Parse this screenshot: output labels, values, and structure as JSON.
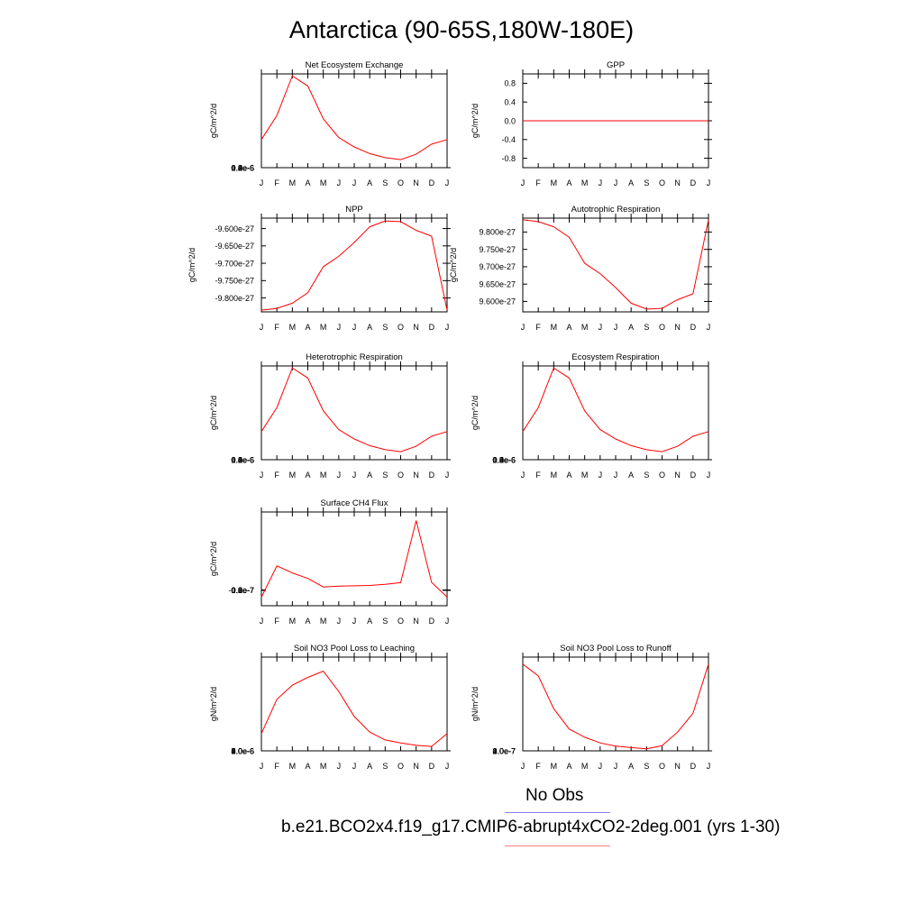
{
  "title": "Antarctica (90-65S,180W-180E)",
  "legend": {
    "obs_label": "No Obs",
    "obs_color": "#8080ff",
    "case_label": "b.e21.BCO2x4.f19_g17.CMIP6-abrupt4xCO2-2deg.001 (yrs 1-30)",
    "case_color": "#ff8080"
  },
  "chart_data": [
    {
      "type": "line",
      "title": "Net Ecosystem Exchange",
      "ylabel": "gC/m^2/d",
      "categories": [
        "J",
        "F",
        "M",
        "A",
        "M",
        "J",
        "J",
        "A",
        "S",
        "O",
        "N",
        "D",
        "J"
      ],
      "ylim": [
        0.0,
        1.4e-06
      ],
      "yticks": [
        "0.0e-6",
        "0.2e-6",
        "0.4e-6",
        "0.6e-6",
        "0.8e-6",
        "1.0e-6",
        "1.2e-6",
        "1.4e-6"
      ],
      "line_color": "#ff0000",
      "values": [
        4.2e-07,
        7.8e-07,
        1.37e-06,
        1.22e-06,
        7.3e-07,
        4.5e-07,
        3.1e-07,
        2.1e-07,
        1.5e-07,
        1.2e-07,
        2e-07,
        3.5e-07,
        4.2e-07
      ]
    },
    {
      "type": "line",
      "title": "GPP",
      "ylabel": "gC/m^2/d",
      "categories": [
        "J",
        "F",
        "M",
        "A",
        "M",
        "J",
        "J",
        "A",
        "S",
        "O",
        "N",
        "D",
        "J"
      ],
      "ylim": [
        -1.0,
        1.0
      ],
      "yticks": [
        "-0.8",
        "-0.4",
        "0.0",
        "0.4",
        "0.8"
      ],
      "line_color": "#ff0000",
      "values": [
        0,
        0,
        0,
        0,
        0,
        0,
        0,
        0,
        0,
        0,
        0,
        0,
        0
      ]
    },
    {
      "type": "line",
      "title": "NPP",
      "ylabel": "gC/m^2/d",
      "categories": [
        "J",
        "F",
        "M",
        "A",
        "M",
        "J",
        "J",
        "A",
        "S",
        "O",
        "N",
        "D",
        "J"
      ],
      "ylim": [
        -9.84e-27,
        -9.57e-27
      ],
      "yticks": [
        "-9.800e-27",
        "-9.750e-27",
        "-9.700e-27",
        "-9.650e-27",
        "-9.600e-27"
      ],
      "line_color": "#ff0000",
      "values": [
        -9.835e-27,
        -9.83e-27,
        -9.815e-27,
        -9.785e-27,
        -9.71e-27,
        -9.68e-27,
        -9.64e-27,
        -9.595e-27,
        -9.578e-27,
        -9.58e-27,
        -9.605e-27,
        -9.622e-27,
        -9.835e-27
      ]
    },
    {
      "type": "line",
      "title": "Autotrophic Respiration",
      "ylabel": "gC/m^2/d",
      "categories": [
        "J",
        "F",
        "M",
        "A",
        "M",
        "J",
        "J",
        "A",
        "S",
        "O",
        "N",
        "D",
        "J"
      ],
      "ylim": [
        9.57e-27,
        9.84e-27
      ],
      "yticks": [
        "9.600e-27",
        "9.650e-27",
        "9.700e-27",
        "9.750e-27",
        "9.800e-27"
      ],
      "line_color": "#ff0000",
      "values": [
        9.835e-27,
        9.83e-27,
        9.815e-27,
        9.785e-27,
        9.71e-27,
        9.68e-27,
        9.64e-27,
        9.595e-27,
        9.578e-27,
        9.58e-27,
        9.605e-27,
        9.622e-27,
        9.835e-27
      ]
    },
    {
      "type": "line",
      "title": "Heterotrophic Respiration",
      "ylabel": "gC/m^2/d",
      "categories": [
        "J",
        "F",
        "M",
        "A",
        "M",
        "J",
        "J",
        "A",
        "S",
        "O",
        "N",
        "D",
        "J"
      ],
      "ylim": [
        0.0,
        1.4e-06
      ],
      "yticks": [
        "0.0e-6",
        "0.2e-6",
        "0.4e-6",
        "0.6e-6",
        "0.8e-6",
        "1.0e-6",
        "1.2e-6",
        "1.4e-6"
      ],
      "line_color": "#ff0000",
      "values": [
        4.2e-07,
        7.8e-07,
        1.37e-06,
        1.22e-06,
        7.3e-07,
        4.5e-07,
        3.1e-07,
        2.1e-07,
        1.5e-07,
        1.2e-07,
        2e-07,
        3.5e-07,
        4.2e-07
      ]
    },
    {
      "type": "line",
      "title": "Ecosystem Respiration",
      "ylabel": "gC/m^2/d",
      "categories": [
        "J",
        "F",
        "M",
        "A",
        "M",
        "J",
        "J",
        "A",
        "S",
        "O",
        "N",
        "D",
        "J"
      ],
      "ylim": [
        0.0,
        1.4e-06
      ],
      "yticks": [
        "0.0e-6",
        "0.2e-6",
        "0.4e-6",
        "0.6e-6",
        "0.8e-6",
        "1.0e-6",
        "1.2e-6",
        "1.4e-6"
      ],
      "line_color": "#ff0000",
      "values": [
        4.2e-07,
        7.8e-07,
        1.37e-06,
        1.22e-06,
        7.3e-07,
        4.5e-07,
        3.1e-07,
        2.1e-07,
        1.5e-07,
        1.2e-07,
        2e-07,
        3.5e-07,
        4.2e-07
      ]
    },
    {
      "type": "line",
      "title": "Surface CH4 Flux",
      "ylabel": "gC/m^2/d",
      "categories": [
        "J",
        "F",
        "M",
        "A",
        "M",
        "J",
        "J",
        "A",
        "S",
        "O",
        "N",
        "D",
        "J"
      ],
      "ylim": [
        -2e-08,
        1e-07
      ],
      "yticks": [
        "-0.2e-7",
        "0.0e-7",
        "0.2e-7",
        "0.4e-7",
        "0.6e-7",
        "0.8e-7",
        "1.0e-7"
      ],
      "line_color": "#ff0000",
      "values": [
        -9e-09,
        3.1e-08,
        2.2e-08,
        1.5e-08,
        4e-09,
        5e-09,
        5.5e-09,
        6e-09,
        7.5e-09,
        9.5e-09,
        8.9e-08,
        1e-08,
        -9e-09
      ]
    },
    {
      "type": "line",
      "title": "Soil NO3 Pool Loss to Leaching",
      "ylabel": "gN/m^2/d",
      "categories": [
        "J",
        "F",
        "M",
        "A",
        "M",
        "J",
        "J",
        "A",
        "S",
        "O",
        "N",
        "D",
        "J"
      ],
      "ylim": [
        0.0,
        6e-06
      ],
      "yticks": [
        "0.0e-6",
        "1.0e-6",
        "2.0e-6",
        "3.0e-6",
        "4.0e-6",
        "5.0e-6",
        "6.0e-6"
      ],
      "line_color": "#ff0000",
      "values": [
        1.1e-06,
        3.3e-06,
        4.2e-06,
        4.7e-06,
        5.1e-06,
        3.8e-06,
        2.2e-06,
        1.2e-06,
        7e-07,
        5e-07,
        3.5e-07,
        2.8e-07,
        1.1e-06
      ]
    },
    {
      "type": "line",
      "title": "Soil NO3 Pool Loss to Runoff",
      "ylabel": "gN/m^2/d",
      "categories": [
        "J",
        "F",
        "M",
        "A",
        "M",
        "J",
        "J",
        "A",
        "S",
        "O",
        "N",
        "D",
        "J"
      ],
      "ylim": [
        0.0,
        4e-07
      ],
      "yticks": [
        "0.0e-7",
        "1.0e-7",
        "2.0e-7",
        "3.0e-7",
        "4.0e-7"
      ],
      "line_color": "#ff0000",
      "values": [
        3.7e-07,
        3.2e-07,
        1.8e-07,
        9.3e-08,
        5.8e-08,
        3.4e-08,
        2e-08,
        1.4e-08,
        9e-09,
        2.2e-08,
        8e-08,
        1.6e-07,
        3.7e-07
      ]
    }
  ]
}
